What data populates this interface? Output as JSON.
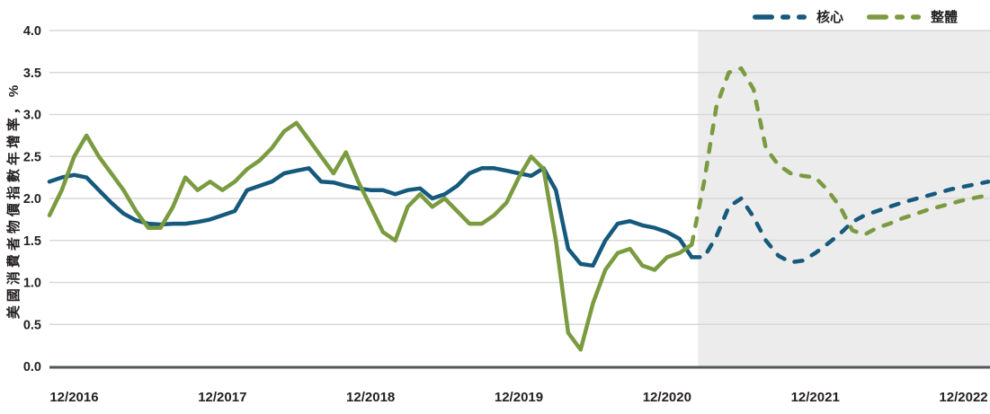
{
  "colors": {
    "core": "#15597C",
    "headline": "#7A9B3F",
    "grid": "#D8D8D8",
    "axis_line": "#53565A",
    "forecast_background": "#ECECEC",
    "text": "#231F20",
    "background": "#FFFFFF"
  },
  "chart_data": {
    "type": "line",
    "ylabel": "美國消費者物價指數年增率，%",
    "ylim": [
      0,
      4
    ],
    "ytick_interval": 0.5,
    "y_tick_labels": [
      "0.0",
      "0.5",
      "1.0",
      "1.5",
      "2.0",
      "2.5",
      "3.0",
      "3.5",
      "4.0"
    ],
    "x_tick_labels": [
      "12/2016",
      "12/2017",
      "12/2018",
      "12/2019",
      "12/2020",
      "12/2021",
      "12/2022"
    ],
    "x_tick_indices": [
      2,
      14,
      26,
      38,
      50,
      62,
      74
    ],
    "grid": "horizontal",
    "legend_position": "top-right",
    "forecast_start_index": 53,
    "forecast_region_shaded": true,
    "line_style_history": "solid",
    "line_style_forecast": "dashed",
    "x": [
      "10/2016",
      "11/2016",
      "12/2016",
      "01/2017",
      "02/2017",
      "03/2017",
      "04/2017",
      "05/2017",
      "06/2017",
      "07/2017",
      "08/2017",
      "09/2017",
      "10/2017",
      "11/2017",
      "12/2017",
      "01/2018",
      "02/2018",
      "03/2018",
      "04/2018",
      "05/2018",
      "06/2018",
      "07/2018",
      "08/2018",
      "09/2018",
      "10/2018",
      "11/2018",
      "12/2018",
      "01/2019",
      "02/2019",
      "03/2019",
      "04/2019",
      "05/2019",
      "06/2019",
      "07/2019",
      "08/2019",
      "09/2019",
      "10/2019",
      "11/2019",
      "12/2019",
      "01/2020",
      "02/2020",
      "03/2020",
      "04/2020",
      "05/2020",
      "06/2020",
      "07/2020",
      "08/2020",
      "09/2020",
      "10/2020",
      "11/2020",
      "12/2020",
      "01/2021",
      "02/2021",
      "03/2021",
      "04/2021",
      "05/2021",
      "06/2021",
      "07/2021",
      "08/2021",
      "09/2021",
      "10/2021",
      "11/2021",
      "12/2021",
      "01/2022",
      "02/2022",
      "03/2022",
      "04/2022",
      "05/2022",
      "06/2022",
      "07/2022",
      "08/2022",
      "09/2022",
      "10/2022",
      "11/2022",
      "12/2022",
      "01/2023",
      "02/2023"
    ],
    "series": [
      {
        "key": "core",
        "name": "核心",
        "color": "#15597C",
        "values": [
          2.2,
          2.25,
          2.28,
          2.25,
          2.1,
          1.95,
          1.82,
          1.74,
          1.7,
          1.69,
          1.7,
          1.7,
          1.72,
          1.75,
          1.8,
          1.85,
          2.1,
          2.15,
          2.2,
          2.3,
          2.33,
          2.36,
          2.2,
          2.19,
          2.15,
          2.12,
          2.1,
          2.1,
          2.05,
          2.1,
          2.12,
          2.0,
          2.05,
          2.15,
          2.3,
          2.36,
          2.36,
          2.33,
          2.3,
          2.27,
          2.36,
          2.1,
          1.4,
          1.22,
          1.2,
          1.5,
          1.7,
          1.73,
          1.68,
          1.65,
          1.6,
          1.52,
          1.3,
          1.3,
          1.55,
          1.9,
          2.0,
          1.78,
          1.5,
          1.32,
          1.24,
          1.26,
          1.35,
          1.46,
          1.58,
          1.72,
          1.8,
          1.85,
          1.9,
          1.95,
          1.99,
          2.03,
          2.07,
          2.11,
          2.14,
          2.17,
          2.2
        ]
      },
      {
        "key": "headline",
        "name": "整體",
        "color": "#7A9B3F",
        "values": [
          1.8,
          2.1,
          2.5,
          2.75,
          2.5,
          2.3,
          2.1,
          1.85,
          1.65,
          1.65,
          1.9,
          2.25,
          2.1,
          2.2,
          2.1,
          2.2,
          2.35,
          2.45,
          2.6,
          2.8,
          2.9,
          2.7,
          2.5,
          2.3,
          2.55,
          2.2,
          1.9,
          1.6,
          1.5,
          1.9,
          2.05,
          1.9,
          2.0,
          1.85,
          1.7,
          1.7,
          1.8,
          1.95,
          2.25,
          2.5,
          2.35,
          1.5,
          0.4,
          0.2,
          0.75,
          1.15,
          1.35,
          1.4,
          1.2,
          1.15,
          1.3,
          1.35,
          1.45,
          2.2,
          3.1,
          3.5,
          3.55,
          3.3,
          2.6,
          2.4,
          2.3,
          2.27,
          2.25,
          2.1,
          1.9,
          1.62,
          1.57,
          1.65,
          1.7,
          1.76,
          1.81,
          1.86,
          1.9,
          1.94,
          1.98,
          2.01,
          2.04
        ]
      }
    ]
  }
}
